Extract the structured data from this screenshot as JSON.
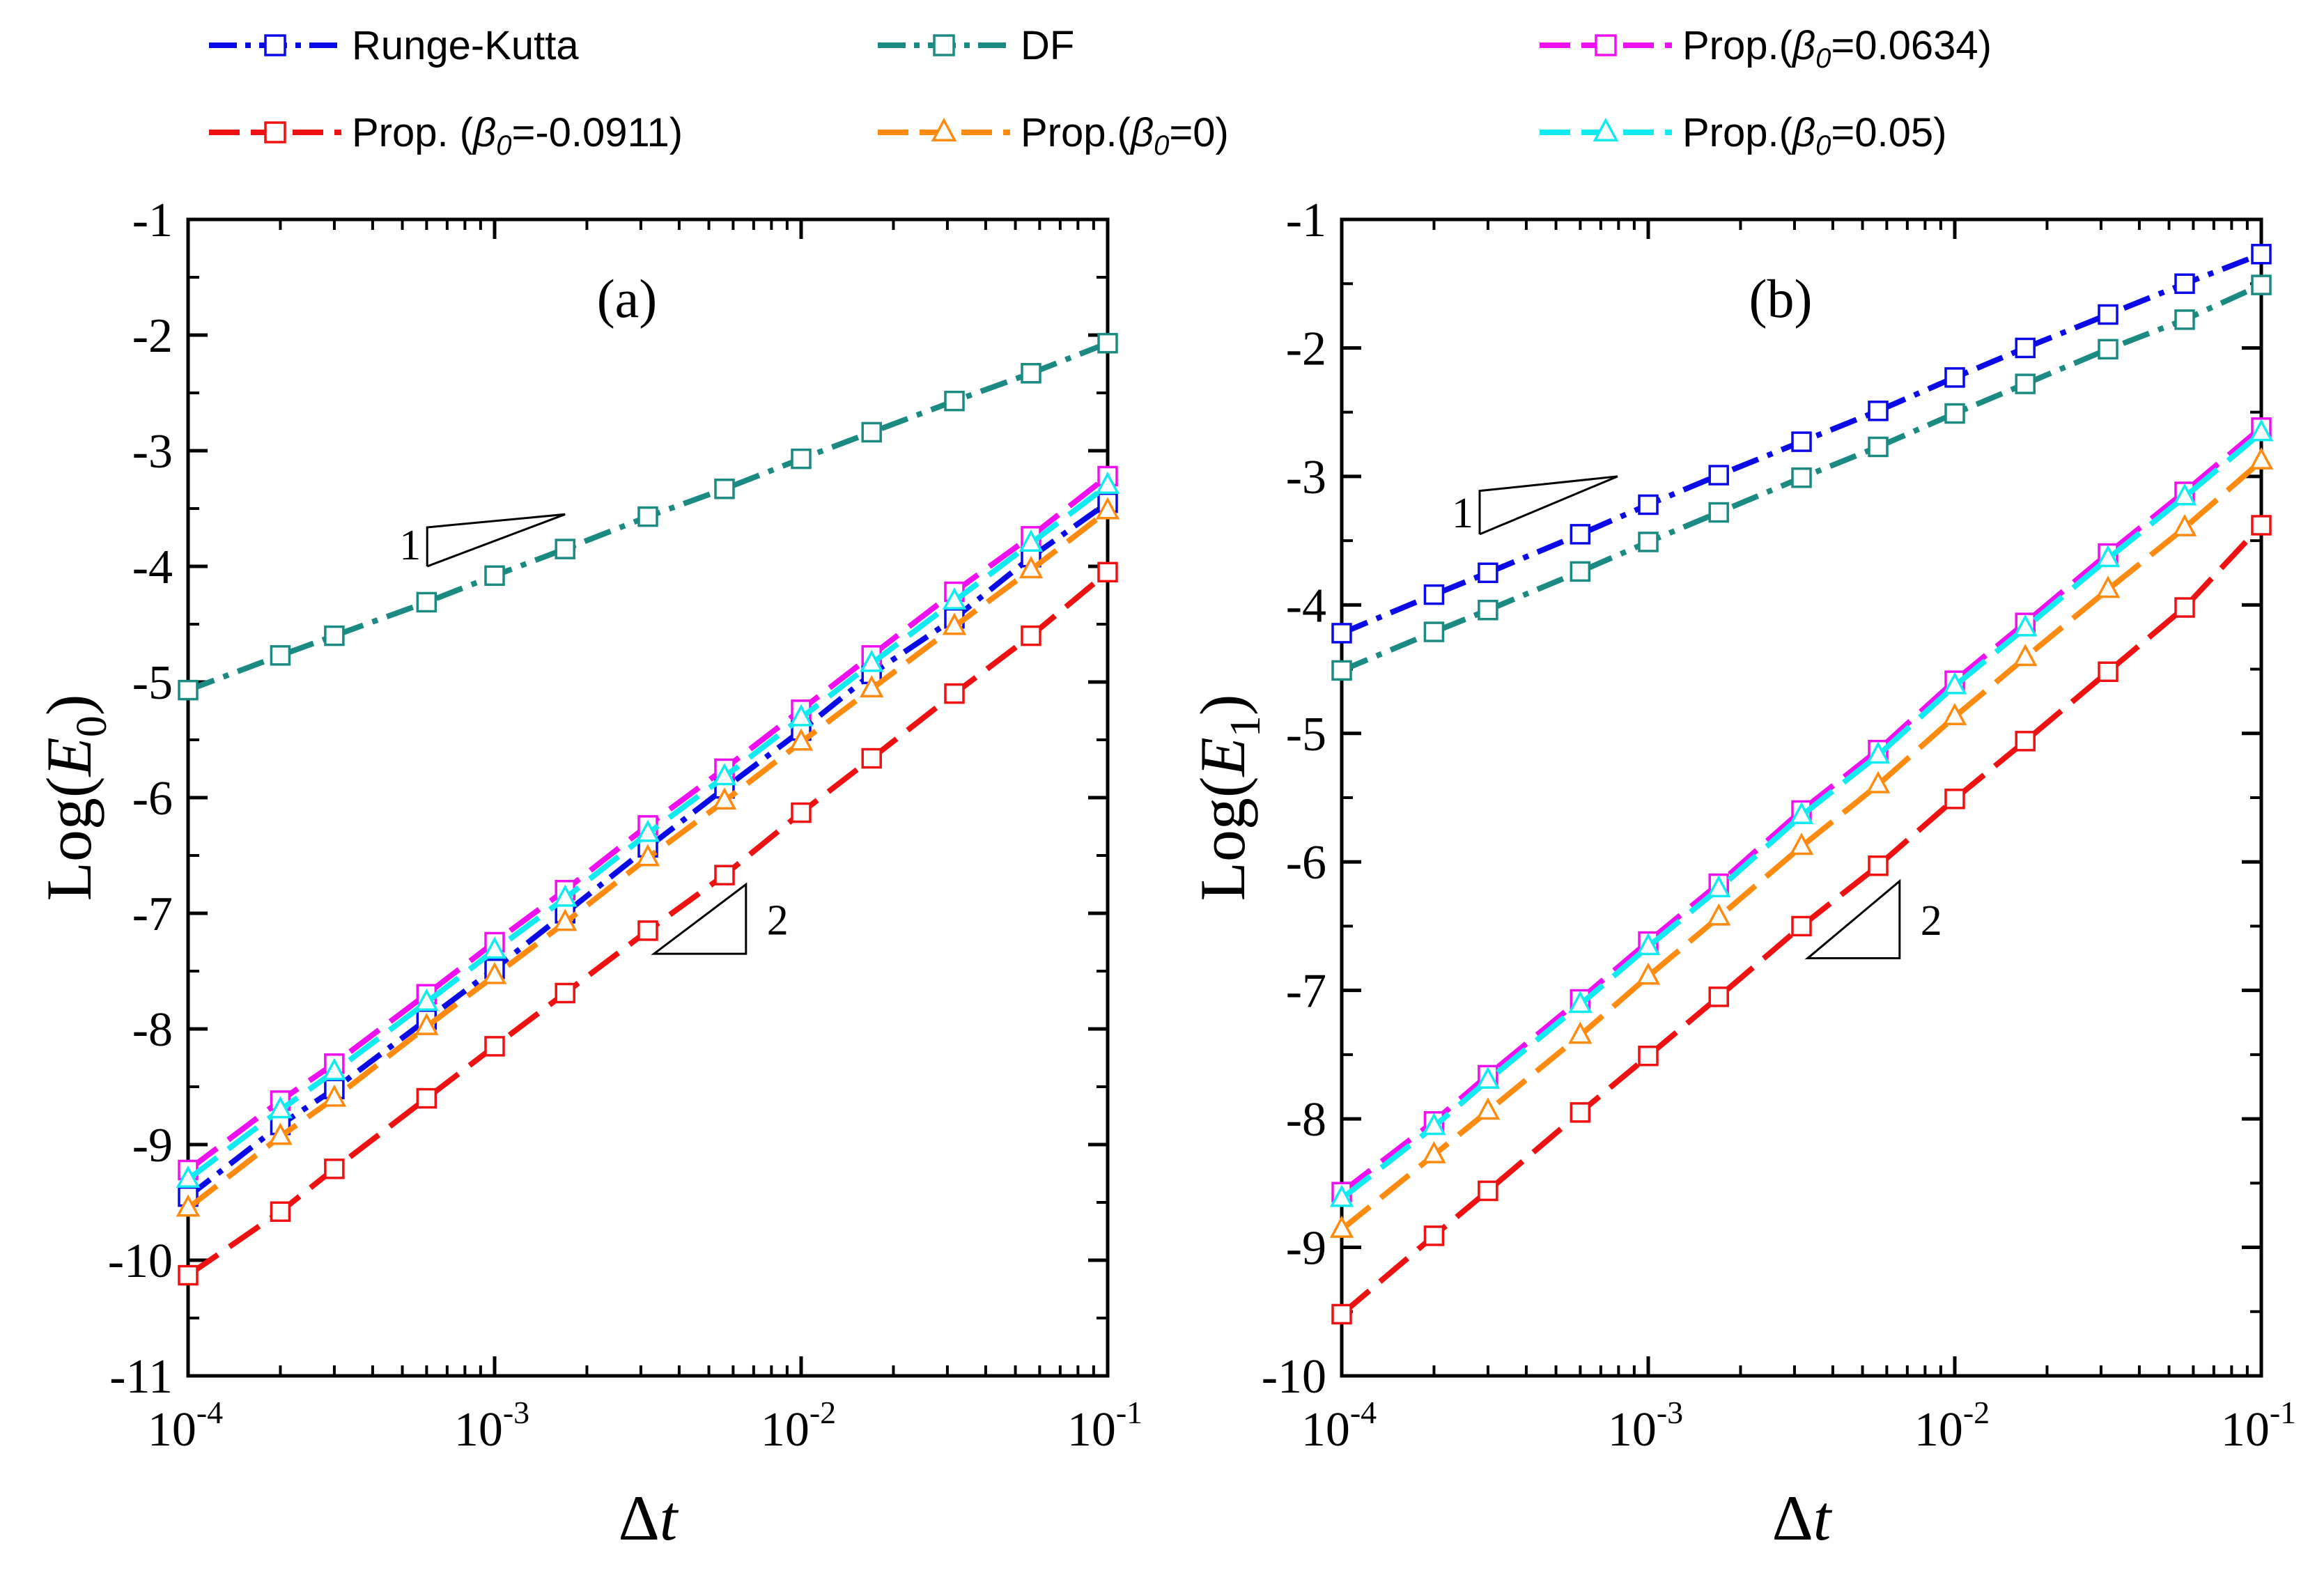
{
  "colors": {
    "rk": "#0a0ae6",
    "df": "#1a8a82",
    "prop_neg": "#ee1111",
    "prop_zero": "#ff8a10",
    "prop_0634": "#ee10ee",
    "prop_005": "#10eaf0",
    "axis": "#000000"
  },
  "legend": [
    {
      "key": "rk",
      "label": "Runge-Kutta",
      "marker": "square",
      "dash": "dashdot"
    },
    {
      "key": "df",
      "label": "DF",
      "marker": "square",
      "dash": "dashdot"
    },
    {
      "key": "prop_0634",
      "label_prefix": "Prop.(",
      "beta_symbol": "β",
      "beta_sub": "0",
      "label_suffix": "=0.0634)",
      "marker": "square",
      "dash": "dash"
    },
    {
      "key": "prop_neg",
      "label_prefix": "Prop. (",
      "beta_symbol": "β",
      "beta_sub": "0",
      "label_suffix": "=-0.0911)",
      "marker": "square",
      "dash": "dash"
    },
    {
      "key": "prop_zero",
      "label_prefix": "Prop.(",
      "beta_symbol": "β",
      "beta_sub": "0",
      "label_suffix": "=0)",
      "marker": "triangle",
      "dash": "dash"
    },
    {
      "key": "prop_005",
      "label_prefix": "Prop.(",
      "beta_symbol": "β",
      "beta_sub": "0",
      "label_suffix": "=0.05)",
      "marker": "triangle",
      "dash": "dash"
    }
  ],
  "chart_data": [
    {
      "type": "line",
      "panel_label": "(a)",
      "xlabel": "Δt",
      "ylabel_prefix": "Log(",
      "ylabel_var": "E",
      "ylabel_sub": "0",
      "ylabel_suffix": ")",
      "xscale": "log10",
      "xlim_exp": [
        -4,
        -1
      ],
      "ylim": [
        -11,
        -1
      ],
      "x_tick_base": "10",
      "x_tick_exponents": [
        "-4",
        "-3",
        "-2",
        "-1"
      ],
      "y_ticks": [
        "-11",
        "-10",
        "-9",
        "-8",
        "-7",
        "-6",
        "-5",
        "-4",
        "-3",
        "-2",
        "-1"
      ],
      "slope_triangles": [
        {
          "label": "1",
          "anchor_log_x": -3.22,
          "anchor_y": -4.0
        },
        {
          "label": "2",
          "anchor_log_x": -2.48,
          "anchor_y": -7.35
        }
      ],
      "x_log": [
        -4,
        -3.699,
        -3.523,
        -3.222,
        -3,
        -2.77,
        -2.5,
        -2.25,
        -2,
        -1.77,
        -1.5,
        -1.25,
        -1
      ],
      "series": [
        {
          "key": "df",
          "name": "DF",
          "values": [
            -5.07,
            -4.77,
            -4.6,
            -4.31,
            -4.08,
            -3.85,
            -3.57,
            -3.33,
            -3.07,
            -2.84,
            -2.57,
            -2.33,
            -2.07
          ]
        },
        {
          "key": "rk",
          "name": "Runge-Kutta",
          "values": [
            -9.45,
            -8.83,
            -8.52,
            -7.92,
            -7.48,
            -7.0,
            -6.43,
            -5.92,
            -5.42,
            -4.93,
            -4.45,
            -3.92,
            -3.45
          ]
        },
        {
          "key": "prop_0634",
          "name": "Prop.(β0=0.0634)",
          "values": [
            -9.22,
            -8.62,
            -8.3,
            -7.7,
            -7.25,
            -6.8,
            -6.24,
            -5.75,
            -5.24,
            -4.77,
            -4.22,
            -3.74,
            -3.22
          ]
        },
        {
          "key": "prop_005",
          "name": "Prop.(β0=0.05)",
          "values": [
            -9.3,
            -8.7,
            -8.37,
            -7.77,
            -7.32,
            -6.87,
            -6.31,
            -5.82,
            -5.31,
            -4.84,
            -4.3,
            -3.8,
            -3.3
          ]
        },
        {
          "key": "prop_zero",
          "name": "Prop.(β0=0)",
          "values": [
            -9.55,
            -8.93,
            -8.6,
            -7.98,
            -7.54,
            -7.08,
            -6.52,
            -6.03,
            -5.52,
            -5.06,
            -4.52,
            -4.03,
            -3.52
          ]
        },
        {
          "key": "prop_neg",
          "name": "Prop. (β0=-0.0911)",
          "values": [
            -10.13,
            -9.58,
            -9.21,
            -8.6,
            -8.15,
            -7.69,
            -7.15,
            -6.67,
            -6.13,
            -5.66,
            -5.1,
            -4.6,
            -4.05
          ]
        }
      ]
    },
    {
      "type": "line",
      "panel_label": "(b)",
      "xlabel": "Δt",
      "ylabel_prefix": "Log(",
      "ylabel_var": "E",
      "ylabel_sub": "1",
      "ylabel_suffix": ")",
      "xscale": "log10",
      "xlim_exp": [
        -4,
        -1
      ],
      "ylim": [
        -10,
        -1
      ],
      "x_tick_base": "10",
      "x_tick_exponents": [
        "-4",
        "-3",
        "-2",
        "-1"
      ],
      "y_ticks": [
        "-10",
        "-9",
        "-8",
        "-7",
        "-6",
        "-5",
        "-4",
        "-3",
        "-2",
        "-1"
      ],
      "slope_triangles": [
        {
          "label": "1",
          "anchor_log_x": -3.55,
          "anchor_y": -3.45
        },
        {
          "label": "2",
          "anchor_log_x": -2.48,
          "anchor_y": -6.75
        }
      ],
      "x_log": [
        -4,
        -3.699,
        -3.523,
        -3.222,
        -3,
        -2.77,
        -2.5,
        -2.25,
        -2,
        -1.77,
        -1.5,
        -1.25,
        -1
      ],
      "series": [
        {
          "key": "rk",
          "name": "Runge-Kutta",
          "values": [
            -4.22,
            -3.92,
            -3.75,
            -3.45,
            -3.22,
            -2.99,
            -2.73,
            -2.49,
            -2.23,
            -2.0,
            -1.74,
            -1.5,
            -1.27
          ]
        },
        {
          "key": "df",
          "name": "DF",
          "values": [
            -4.51,
            -4.21,
            -4.04,
            -3.74,
            -3.51,
            -3.28,
            -3.01,
            -2.77,
            -2.51,
            -2.28,
            -2.01,
            -1.78,
            -1.51
          ]
        },
        {
          "key": "prop_0634",
          "name": "Prop.(β0=0.0634)",
          "values": [
            -8.57,
            -8.02,
            -7.66,
            -7.07,
            -6.62,
            -6.17,
            -5.6,
            -5.13,
            -4.59,
            -4.14,
            -3.6,
            -3.12,
            -2.62
          ]
        },
        {
          "key": "prop_005",
          "name": "Prop.(β0=0.05)",
          "values": [
            -8.62,
            -8.06,
            -7.7,
            -7.11,
            -6.66,
            -6.21,
            -5.64,
            -5.17,
            -4.63,
            -4.18,
            -3.64,
            -3.16,
            -2.66
          ]
        },
        {
          "key": "prop_zero",
          "name": "Prop.(β0=0)",
          "values": [
            -8.86,
            -8.28,
            -7.94,
            -7.35,
            -6.89,
            -6.43,
            -5.88,
            -5.4,
            -4.87,
            -4.41,
            -3.88,
            -3.4,
            -2.88
          ]
        },
        {
          "key": "prop_neg",
          "name": "Prop. (β0=-0.0911)",
          "values": [
            -9.52,
            -8.91,
            -8.56,
            -7.95,
            -7.51,
            -7.05,
            -6.5,
            -6.03,
            -5.51,
            -5.06,
            -4.52,
            -4.02,
            -3.38
          ]
        }
      ]
    }
  ]
}
